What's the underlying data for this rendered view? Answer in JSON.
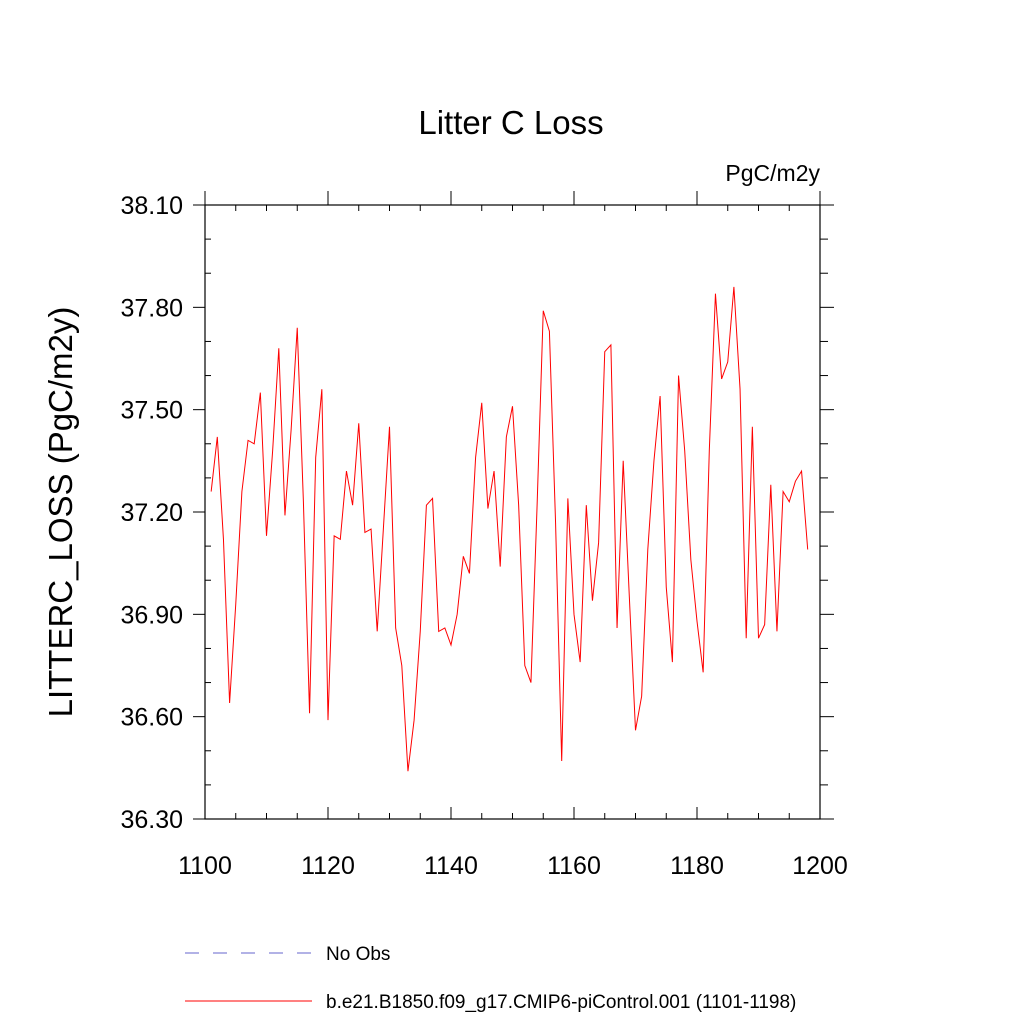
{
  "chart_data": {
    "type": "line",
    "title": "Litter C Loss",
    "units_label": "PgC/m2y",
    "xlabel": "",
    "ylabel": "LITTERC_LOSS  (PgC/m2y)",
    "xlim": [
      1100,
      1200
    ],
    "ylim": [
      36.3,
      38.1
    ],
    "x_ticks": [
      1100,
      1120,
      1140,
      1160,
      1180,
      1200
    ],
    "x_tick_labels": [
      "1100",
      "1120",
      "1140",
      "1160",
      "1180",
      "1200"
    ],
    "y_ticks": [
      36.3,
      36.6,
      36.9,
      37.2,
      37.5,
      37.8,
      38.1
    ],
    "y_tick_labels": [
      "36.30",
      "36.60",
      "36.90",
      "37.20",
      "37.50",
      "37.80",
      "38.10"
    ],
    "grid": false,
    "legend_position": "bottom",
    "series": [
      {
        "name": "b.e21.B1850.f09_g17.CMIP6-piControl.001 (1101-1198)",
        "color": "#ff0000",
        "style": "solid",
        "x": [
          1101,
          1102,
          1103,
          1104,
          1105,
          1106,
          1107,
          1108,
          1109,
          1110,
          1111,
          1112,
          1113,
          1114,
          1115,
          1116,
          1117,
          1118,
          1119,
          1120,
          1121,
          1122,
          1123,
          1124,
          1125,
          1126,
          1127,
          1128,
          1129,
          1130,
          1131,
          1132,
          1133,
          1134,
          1135,
          1136,
          1137,
          1138,
          1139,
          1140,
          1141,
          1142,
          1143,
          1144,
          1145,
          1146,
          1147,
          1148,
          1149,
          1150,
          1151,
          1152,
          1153,
          1154,
          1155,
          1156,
          1157,
          1158,
          1159,
          1160,
          1161,
          1162,
          1163,
          1164,
          1165,
          1166,
          1167,
          1168,
          1169,
          1170,
          1171,
          1172,
          1173,
          1174,
          1175,
          1176,
          1177,
          1178,
          1179,
          1180,
          1181,
          1182,
          1183,
          1184,
          1185,
          1186,
          1187,
          1188,
          1189,
          1190,
          1191,
          1192,
          1193,
          1194,
          1195,
          1196,
          1197,
          1198
        ],
        "values": [
          37.26,
          37.42,
          37.12,
          36.64,
          36.93,
          37.26,
          37.41,
          37.4,
          37.55,
          37.13,
          37.38,
          37.68,
          37.19,
          37.44,
          37.74,
          37.23,
          36.61,
          37.36,
          37.56,
          36.59,
          37.13,
          37.12,
          37.32,
          37.22,
          37.46,
          37.14,
          37.15,
          36.85,
          37.15,
          37.45,
          36.86,
          36.75,
          36.44,
          36.59,
          36.85,
          37.22,
          37.24,
          36.85,
          36.86,
          36.81,
          36.9,
          37.07,
          37.02,
          37.36,
          37.52,
          37.21,
          37.32,
          37.04,
          37.42,
          37.51,
          37.22,
          36.75,
          36.7,
          37.22,
          37.79,
          37.73,
          37.17,
          36.47,
          37.24,
          36.9,
          36.76,
          37.22,
          36.94,
          37.11,
          37.67,
          37.69,
          36.86,
          37.35,
          36.95,
          36.56,
          36.66,
          37.09,
          37.35,
          37.54,
          36.98,
          36.76,
          37.6,
          37.38,
          37.06,
          36.88,
          36.73,
          37.38,
          37.84,
          37.59,
          37.64,
          37.86,
          37.56,
          36.83,
          37.45,
          36.83,
          36.87,
          37.28,
          36.85,
          37.26,
          37.23,
          37.29,
          37.32,
          37.09
        ]
      },
      {
        "name": "No Obs",
        "color": "#6666cc",
        "style": "dashed",
        "x": [],
        "values": []
      }
    ]
  }
}
